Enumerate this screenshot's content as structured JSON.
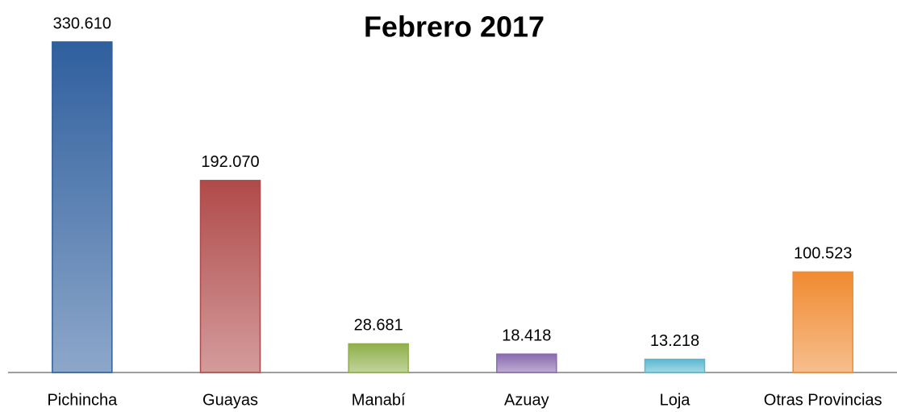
{
  "chart_data": {
    "type": "bar",
    "title": "Febrero 2017",
    "categories": [
      "Pichincha",
      "Guayas",
      "Manabí",
      "Azuay",
      "Loja",
      "Otras Provincias"
    ],
    "values": [
      330610,
      192070,
      28681,
      18418,
      13218,
      100523
    ],
    "value_labels": [
      "330.610",
      "192.070",
      "28.681",
      "18.418",
      "13.218",
      "100.523"
    ],
    "colors": [
      "#2f5f9e",
      "#b04a4a",
      "#8fb04a",
      "#8a6aae",
      "#5ab8d0",
      "#f08a30"
    ]
  }
}
